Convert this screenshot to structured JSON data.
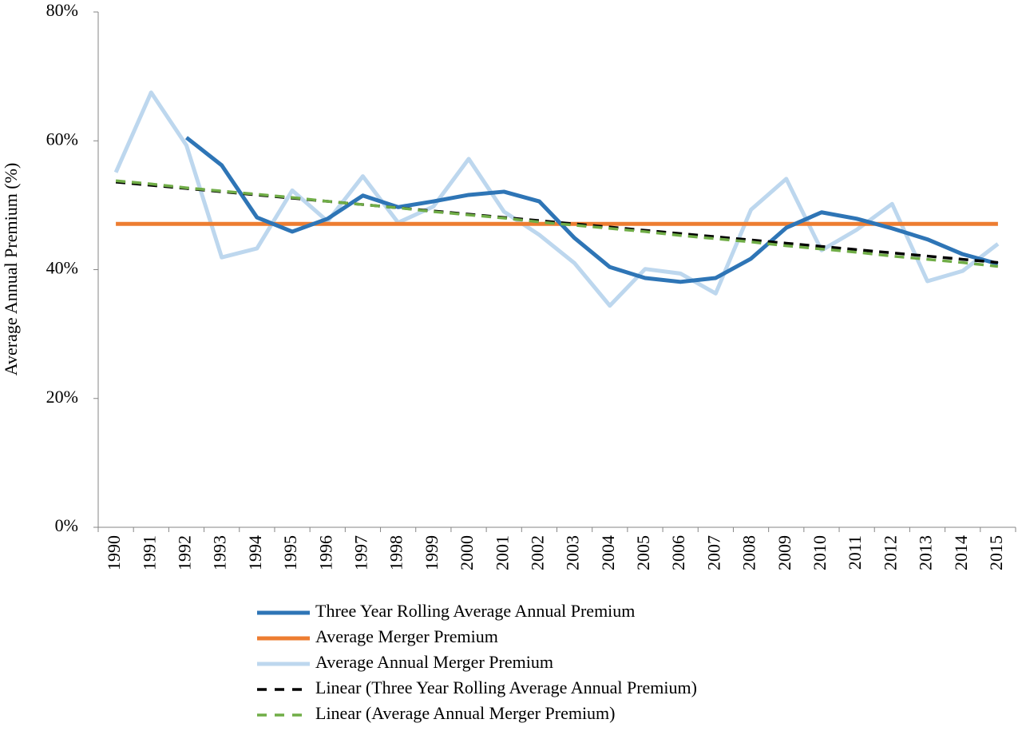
{
  "chart_data": {
    "type": "line",
    "y_label": "Average Annual Premium (%)",
    "categories": [
      "1990",
      "1991",
      "1992",
      "1993",
      "1994",
      "1995",
      "1996",
      "1997",
      "1998",
      "1999",
      "2000",
      "2001",
      "2002",
      "2003",
      "2004",
      "2005",
      "2006",
      "2007",
      "2008",
      "2009",
      "2010",
      "2011",
      "2012",
      "2013",
      "2014",
      "2015"
    ],
    "series": [
      {
        "name": "Three Year Rolling Average Annual Premium",
        "color": "#2e75b6",
        "dash": false,
        "values": [
          null,
          null,
          60.5,
          56.2,
          48.1,
          45.9,
          47.9,
          51.5,
          49.7,
          50.6,
          51.6,
          52.1,
          50.6,
          44.9,
          40.4,
          38.7,
          38.1,
          38.7,
          41.7,
          46.5,
          48.9,
          47.9,
          46.4,
          44.7,
          42.4,
          40.9
        ]
      },
      {
        "name": "Average Merger Premium",
        "color": "#ed7d31",
        "dash": false,
        "values": [
          47.1,
          47.1,
          47.1,
          47.1,
          47.1,
          47.1,
          47.1,
          47.1,
          47.1,
          47.1,
          47.1,
          47.1,
          47.1,
          47.1,
          47.1,
          47.1,
          47.1,
          47.1,
          47.1,
          47.1,
          47.1,
          47.1,
          47.1,
          47.1,
          47.1,
          47.1
        ]
      },
      {
        "name": "Average Annual Merger Premium",
        "color": "#bdd7ee",
        "dash": false,
        "values": [
          55.1,
          67.5,
          59.3,
          41.9,
          43.3,
          52.3,
          47.5,
          54.5,
          47.3,
          49.8,
          57.2,
          49.0,
          45.4,
          41.0,
          34.4,
          40.1,
          39.4,
          36.3,
          49.3,
          54.1,
          43.0,
          46.2,
          50.2,
          38.2,
          39.8,
          44.0
        ]
      },
      {
        "name": "Linear (Three Year Rolling Average Annual Premium)",
        "color": "#000000",
        "dash": true,
        "values": [
          53.6,
          53.1,
          52.6,
          52.1,
          51.6,
          51.1,
          50.6,
          50.1,
          49.6,
          49.1,
          48.6,
          48.1,
          47.6,
          47.1,
          46.6,
          46.1,
          45.6,
          45.1,
          44.6,
          44.1,
          43.6,
          43.1,
          42.6,
          42.1,
          41.6,
          41.1
        ]
      },
      {
        "name": "Linear (Average Annual Merger Premium)",
        "color": "#70ad47",
        "dash": true,
        "values": [
          53.8,
          53.3,
          52.7,
          52.2,
          51.7,
          51.2,
          50.6,
          50.1,
          49.6,
          49.0,
          48.5,
          48.0,
          47.4,
          46.9,
          46.4,
          45.9,
          45.3,
          44.8,
          44.3,
          43.7,
          43.2,
          42.7,
          42.1,
          41.6,
          41.1,
          40.5
        ]
      }
    ],
    "ylim": [
      0,
      80
    ],
    "yticks": [
      {
        "value": 0,
        "label": "0%"
      },
      {
        "value": 20,
        "label": "20%"
      },
      {
        "value": 40,
        "label": "40%"
      },
      {
        "value": 60,
        "label": "60%"
      },
      {
        "value": 80,
        "label": "80%"
      }
    ]
  }
}
